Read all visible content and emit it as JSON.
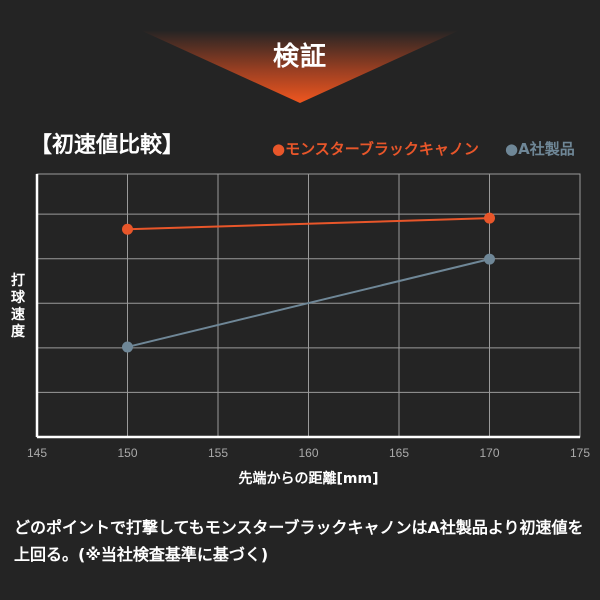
{
  "banner": {
    "title": "検証"
  },
  "colors": {
    "background": "#242424",
    "accent": "#e8562a",
    "competitor": "#6f8797",
    "grid": "#9a9a9a"
  },
  "chart_data": {
    "type": "line",
    "title": "【初速値比較】",
    "xlabel": "先端からの距離[mm]",
    "ylabel": "打球速度",
    "xlim": [
      145,
      175
    ],
    "xticks": [
      145,
      150,
      155,
      160,
      165,
      170,
      175
    ],
    "ylim": [
      0,
      5.9
    ],
    "yticks_unlabeled": [
      0,
      1,
      2,
      3,
      4,
      5
    ],
    "grid": true,
    "legend_position": "top-right",
    "series": [
      {
        "name": "●モンスターブラックキャノン",
        "color": "#e8562a",
        "x": [
          150,
          170
        ],
        "y": [
          4.66,
          4.91
        ]
      },
      {
        "name": "●A社製品",
        "color": "#6f8797",
        "x": [
          150,
          170
        ],
        "y": [
          2.02,
          3.99
        ]
      }
    ]
  },
  "caption": "どのポイントで打撃してもモンスターブラックキャノンはA社製品より初速値を上回る。(※当社検査基準に基づく)"
}
